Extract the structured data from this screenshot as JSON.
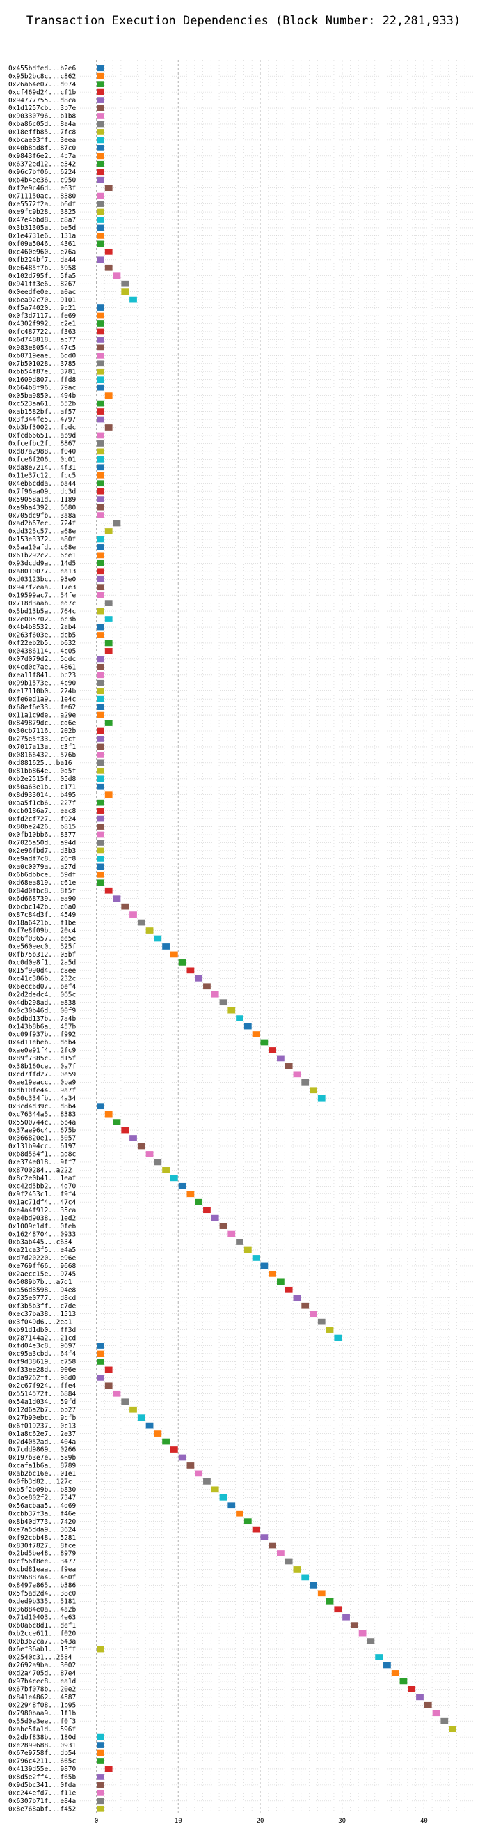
{
  "chart_data": {
    "type": "gantt",
    "title": "Transaction Execution Dependencies (Block Number: 22,281,933)",
    "xlabel": "",
    "ylabel": "",
    "xlim": [
      -2,
      46
    ],
    "x_ticks": [
      0,
      10,
      20,
      30,
      40
    ],
    "grid": true,
    "legend": "none",
    "palette": [
      "#1f77b4",
      "#ff7f0e",
      "#2ca02c",
      "#d62728",
      "#9467bd",
      "#8c564b",
      "#e377c2",
      "#7f7f7f",
      "#bcbd22",
      "#17becf"
    ],
    "transactions": [
      {
        "label": "0x455bdfed...b2e6",
        "start": 0
      },
      {
        "label": "0x95b2bc8c...c862",
        "start": 0
      },
      {
        "label": "0x26a64e07...d074",
        "start": 0
      },
      {
        "label": "0xcf469d24...cf1b",
        "start": 0
      },
      {
        "label": "0x94777755...d8ca",
        "start": 0
      },
      {
        "label": "0x1d1257cb...3b7e",
        "start": 0
      },
      {
        "label": "0x90330796...b1b8",
        "start": 0
      },
      {
        "label": "0xba86c05d...8a4a",
        "start": 0
      },
      {
        "label": "0x18effb85...7fc8",
        "start": 0
      },
      {
        "label": "0xbcae03ff...3eea",
        "start": 0
      },
      {
        "label": "0x40b8ad8f...87c0",
        "start": 0
      },
      {
        "label": "0x9843f6e2...4c7a",
        "start": 0
      },
      {
        "label": "0x6372ed12...e342",
        "start": 0
      },
      {
        "label": "0x96c7bf06...6224",
        "start": 0
      },
      {
        "label": "0xb4b4ee36...c950",
        "start": 0
      },
      {
        "label": "0xf2e9c46d...e63f",
        "start": 1
      },
      {
        "label": "0x711150ac...8380",
        "start": 0
      },
      {
        "label": "0xe5572f2a...b6df",
        "start": 0
      },
      {
        "label": "0xe9fc9b28...3825",
        "start": 0
      },
      {
        "label": "0x47e4bbd8...c8a7",
        "start": 0
      },
      {
        "label": "0x3b31305a...be5d",
        "start": 0
      },
      {
        "label": "0x1e4731e6...131a",
        "start": 0
      },
      {
        "label": "0xf09a5046...4361",
        "start": 0
      },
      {
        "label": "0xc460e960...e76a",
        "start": 1
      },
      {
        "label": "0xfb224bf7...da44",
        "start": 0
      },
      {
        "label": "0xe6485f7b...5958",
        "start": 1
      },
      {
        "label": "0x102d795f...5fa5",
        "start": 2
      },
      {
        "label": "0x941ff3e6...8267",
        "start": 3
      },
      {
        "label": "0x0eedfe0e...a0ac",
        "start": 3
      },
      {
        "label": "0xbea92c70...9101",
        "start": 4
      },
      {
        "label": "0xf5a74020...9c21",
        "start": 0
      },
      {
        "label": "0x0f3d7117...fe69",
        "start": 0
      },
      {
        "label": "0x4302f992...c2e1",
        "start": 0
      },
      {
        "label": "0xfc487722...f363",
        "start": 0
      },
      {
        "label": "0x6d748818...ac77",
        "start": 0
      },
      {
        "label": "0x983e8054...47c5",
        "start": 0
      },
      {
        "label": "0xb0719eae...6dd0",
        "start": 0
      },
      {
        "label": "0x7b501028...3785",
        "start": 0
      },
      {
        "label": "0xbb54f87e...3781",
        "start": 0
      },
      {
        "label": "0x1609d807...ffd8",
        "start": 0
      },
      {
        "label": "0x664b8f96...79ac",
        "start": 0
      },
      {
        "label": "0x05ba9850...494b",
        "start": 1
      },
      {
        "label": "0xc523aa61...552b",
        "start": 0
      },
      {
        "label": "0xab1582bf...af57",
        "start": 0
      },
      {
        "label": "0x3f344fe5...4797",
        "start": 0
      },
      {
        "label": "0xb3bf3002...fbdc",
        "start": 1
      },
      {
        "label": "0xfcd66651...ab9d",
        "start": 0
      },
      {
        "label": "0xfcefbc2f...8867",
        "start": 0
      },
      {
        "label": "0xd87a2988...f040",
        "start": 0
      },
      {
        "label": "0xfce6f206...0c01",
        "start": 0
      },
      {
        "label": "0xda8e7214...4f31",
        "start": 0
      },
      {
        "label": "0x11e37c12...fcc5",
        "start": 0
      },
      {
        "label": "0x4eb6cdda...ba44",
        "start": 0
      },
      {
        "label": "0x7f96aa09...dc3d",
        "start": 0
      },
      {
        "label": "0x59058a1d...1189",
        "start": 0
      },
      {
        "label": "0xa9ba4392...6680",
        "start": 0
      },
      {
        "label": "0x705dc9fb...3a8a",
        "start": 0
      },
      {
        "label": "0xad2b67ec...724f",
        "start": 2
      },
      {
        "label": "0xdd325c57...a68e",
        "start": 1
      },
      {
        "label": "0x153e3372...a80f",
        "start": 0
      },
      {
        "label": "0x5aa10afd...c68e",
        "start": 0
      },
      {
        "label": "0x61b292c2...6ce1",
        "start": 0
      },
      {
        "label": "0x93dcdd9a...14d5",
        "start": 0
      },
      {
        "label": "0xa8010077...ea13",
        "start": 0
      },
      {
        "label": "0xd03123bc...93e0",
        "start": 0
      },
      {
        "label": "0x947f2eaa...17e3",
        "start": 0
      },
      {
        "label": "0x19599ac7...54fe",
        "start": 0
      },
      {
        "label": "0x718d3aab...ed7c",
        "start": 1
      },
      {
        "label": "0x5bd13b5a...764c",
        "start": 0
      },
      {
        "label": "0x2e005702...bc3b",
        "start": 1
      },
      {
        "label": "0x4b4b8532...2ab4",
        "start": 0
      },
      {
        "label": "0x263f603e...dcb5",
        "start": 0
      },
      {
        "label": "0xf22eb2b5...b632",
        "start": 1
      },
      {
        "label": "0x04386114...4c05",
        "start": 1
      },
      {
        "label": "0x07d079d2...5ddc",
        "start": 0
      },
      {
        "label": "0x4cd0c7ae...4861",
        "start": 0
      },
      {
        "label": "0xea11f841...bc23",
        "start": 0
      },
      {
        "label": "0x99b1573e...4c90",
        "start": 0
      },
      {
        "label": "0xe17110b0...224b",
        "start": 0
      },
      {
        "label": "0xfe6ed1a9...1e4c",
        "start": 0
      },
      {
        "label": "0x68ef6e33...fe62",
        "start": 0
      },
      {
        "label": "0x11a1c9de...a29e",
        "start": 0
      },
      {
        "label": "0x849879dc...cd6e",
        "start": 1
      },
      {
        "label": "0x30cb7116...202b",
        "start": 0
      },
      {
        "label": "0x275e5f33...c9cf",
        "start": 0
      },
      {
        "label": "0x7017a13a...c3f1",
        "start": 0
      },
      {
        "label": "0x08166432...576b",
        "start": 0
      },
      {
        "label": "0xd881625...ba16",
        "start": 0
      },
      {
        "label": "0x81bb864e...0d5f",
        "start": 0
      },
      {
        "label": "0xb2e2515f...05d8",
        "start": 0
      },
      {
        "label": "0x50a63e1b...c171",
        "start": 0
      },
      {
        "label": "0x8d933014...b495",
        "start": 1
      },
      {
        "label": "0xaa5f1cb6...227f",
        "start": 0
      },
      {
        "label": "0xcb0186a7...eac8",
        "start": 0
      },
      {
        "label": "0xfd2cf727...f924",
        "start": 0
      },
      {
        "label": "0x80be2426...b815",
        "start": 0
      },
      {
        "label": "0x0fb10bb6...8377",
        "start": 0
      },
      {
        "label": "0x7025a50d...a94d",
        "start": 0
      },
      {
        "label": "0x2e96fbd7...d3b3",
        "start": 0
      },
      {
        "label": "0xe9adf7c8...26f8",
        "start": 0
      },
      {
        "label": "0xa0c0079a...a27d",
        "start": 0
      },
      {
        "label": "0x6b6dbbce...59df",
        "start": 0
      },
      {
        "label": "0xd68ea819...c61e",
        "start": 0
      },
      {
        "label": "0x84d0fbc8...8f5f",
        "start": 1
      },
      {
        "label": "0x6d668739...ea90",
        "start": 2
      },
      {
        "label": "0xbcbc142b...c6a0",
        "start": 3
      },
      {
        "label": "0x87c84d3f...4549",
        "start": 4
      },
      {
        "label": "0x18a6421b...f1be",
        "start": 5
      },
      {
        "label": "0xf7e8f09b...20c4",
        "start": 6
      },
      {
        "label": "0xe6f03657...ee5e",
        "start": 7
      },
      {
        "label": "0xe560eec0...525f",
        "start": 8
      },
      {
        "label": "0xfb75b312...05bf",
        "start": 9
      },
      {
        "label": "0xc0d0e8f1...2a5d",
        "start": 10
      },
      {
        "label": "0x15f990d4...c8ee",
        "start": 11
      },
      {
        "label": "0xc41c386b...232c",
        "start": 12
      },
      {
        "label": "0x6ecc6d07...bef4",
        "start": 13
      },
      {
        "label": "0x2d2dedc4...065c",
        "start": 14
      },
      {
        "label": "0x4db298ad...e838",
        "start": 15
      },
      {
        "label": "0x0c30b46d...00f9",
        "start": 16
      },
      {
        "label": "0x6dbd137b...7a4b",
        "start": 17
      },
      {
        "label": "0x143b8b6a...457b",
        "start": 18
      },
      {
        "label": "0xc09f937b...f992",
        "start": 19
      },
      {
        "label": "0x4d11ebeb...ddb4",
        "start": 20
      },
      {
        "label": "0xae0e91f4...2fc9",
        "start": 21
      },
      {
        "label": "0x89f7385c...d15f",
        "start": 22
      },
      {
        "label": "0x38b160ce...0a7f",
        "start": 23
      },
      {
        "label": "0xcd7ffd27...0e59",
        "start": 24
      },
      {
        "label": "0xae19eacc...0ba9",
        "start": 25
      },
      {
        "label": "0xdb10fe44...9a7f",
        "start": 26
      },
      {
        "label": "0x60c334fb...4a34",
        "start": 27
      },
      {
        "label": "0x3cd4d39c...d8b4",
        "start": 0
      },
      {
        "label": "0xc76344a5...8383",
        "start": 1
      },
      {
        "label": "0x5500744c...6b4a",
        "start": 2
      },
      {
        "label": "0x37ae96c4...675b",
        "start": 3
      },
      {
        "label": "0x366820e1...5057",
        "start": 4
      },
      {
        "label": "0x131b94cc...6197",
        "start": 5
      },
      {
        "label": "0xb8d564f1...ad8c",
        "start": 6
      },
      {
        "label": "0xe374e018...9ff7",
        "start": 7
      },
      {
        "label": "0x8700284...a222",
        "start": 8
      },
      {
        "label": "0x8c2e0b41...1eaf",
        "start": 9
      },
      {
        "label": "0xc42d5bb2...4d70",
        "start": 10
      },
      {
        "label": "0x9f2453c1...f9f4",
        "start": 11
      },
      {
        "label": "0x1ac71df4...47c4",
        "start": 12
      },
      {
        "label": "0xe4a4f912...35ca",
        "start": 13
      },
      {
        "label": "0xe4bd9038...1ed2",
        "start": 14
      },
      {
        "label": "0x1009c1df...0feb",
        "start": 15
      },
      {
        "label": "0x16248704...0933",
        "start": 16
      },
      {
        "label": "0xb3ab445...c634",
        "start": 17
      },
      {
        "label": "0xa21ca3f5...e4a5",
        "start": 18
      },
      {
        "label": "0xd7d20220...e96e",
        "start": 19
      },
      {
        "label": "0xe769ff66...9668",
        "start": 20
      },
      {
        "label": "0x2aecc15e...9745",
        "start": 21
      },
      {
        "label": "0x5089b7b...a7d1",
        "start": 22
      },
      {
        "label": "0xa56d8598...94e8",
        "start": 23
      },
      {
        "label": "0x735e0777...d8cd",
        "start": 24
      },
      {
        "label": "0xf3b5b3ff...c7de",
        "start": 25
      },
      {
        "label": "0xec37ba38...1513",
        "start": 26
      },
      {
        "label": "0x3f049d6...2ea1",
        "start": 27
      },
      {
        "label": "0xb91d1db0...ff3d",
        "start": 28
      },
      {
        "label": "0x787144a2...21cd",
        "start": 29
      },
      {
        "label": "0xfd04e3c8...9697",
        "start": 0
      },
      {
        "label": "0xc95a3cbd...64f4",
        "start": 0
      },
      {
        "label": "0xf9d38619...c758",
        "start": 0
      },
      {
        "label": "0xf33ee28d...906e",
        "start": 1
      },
      {
        "label": "0xda9262ff...98d0",
        "start": 0
      },
      {
        "label": "0x2c67f924...ffe4",
        "start": 1
      },
      {
        "label": "0x5514572f...6884",
        "start": 2
      },
      {
        "label": "0x54a1d034...59fd",
        "start": 3
      },
      {
        "label": "0x12d6a2b7...bb27",
        "start": 4
      },
      {
        "label": "0x27b90ebc...9cfb",
        "start": 5
      },
      {
        "label": "0x6f019237...0c13",
        "start": 6
      },
      {
        "label": "0x1a8c62e7...2e37",
        "start": 7
      },
      {
        "label": "0x2d4052ad...404a",
        "start": 8
      },
      {
        "label": "0x7cdd9869...0266",
        "start": 9
      },
      {
        "label": "0x197b3e7e...589b",
        "start": 10
      },
      {
        "label": "0xcafa1b6a...8789",
        "start": 11
      },
      {
        "label": "0xab2bc16e...01e1",
        "start": 12
      },
      {
        "label": "0x0fb3d82...127c",
        "start": 13
      },
      {
        "label": "0xb5f2b09b...b830",
        "start": 14
      },
      {
        "label": "0x3ce802f2...7347",
        "start": 15
      },
      {
        "label": "0x56acbaa5...4d69",
        "start": 16
      },
      {
        "label": "0xcbb37f3a...f46e",
        "start": 17
      },
      {
        "label": "0x8b40d773...7420",
        "start": 18
      },
      {
        "label": "0xe7a5dda9...3624",
        "start": 19
      },
      {
        "label": "0xf92cbb48...5281",
        "start": 20
      },
      {
        "label": "0x830f7827...8fce",
        "start": 21
      },
      {
        "label": "0x2bd5be48...8979",
        "start": 22
      },
      {
        "label": "0xcf56f8ee...3477",
        "start": 23
      },
      {
        "label": "0xcbd81eaa...f9ea",
        "start": 24
      },
      {
        "label": "0x896887a4...460f",
        "start": 25
      },
      {
        "label": "0x8497e865...b386",
        "start": 26
      },
      {
        "label": "0x5f5ad2d4...38c0",
        "start": 27
      },
      {
        "label": "0xded9b335...5181",
        "start": 28
      },
      {
        "label": "0x36884e0a...4a2b",
        "start": 29
      },
      {
        "label": "0x71d10403...4e63",
        "start": 30
      },
      {
        "label": "0xb0a6c8d1...def1",
        "start": 31
      },
      {
        "label": "0xb2cce611...f020",
        "start": 32
      },
      {
        "label": "0x0b362ca7...643a",
        "start": 33
      },
      {
        "label": "0x6ef36ab1...13ff",
        "start": 0
      },
      {
        "label": "0x2540c31...2584",
        "start": 34
      },
      {
        "label": "0x2692a9ba...3002",
        "start": 35
      },
      {
        "label": "0xd2a4705d...87e4",
        "start": 36
      },
      {
        "label": "0x97b4cec8...ea1d",
        "start": 37
      },
      {
        "label": "0x67bf078b...20e2",
        "start": 38
      },
      {
        "label": "0x841e4862...4587",
        "start": 39
      },
      {
        "label": "0x22948f08...1b95",
        "start": 40
      },
      {
        "label": "0x7980baa9...1f1b",
        "start": 41
      },
      {
        "label": "0x55d0e3ee...f0f3",
        "start": 42
      },
      {
        "label": "0xabc5fa1d...596f",
        "start": 43
      },
      {
        "label": "0x2dbf838b...180d",
        "start": 0
      },
      {
        "label": "0xe2899688...0931",
        "start": 0
      },
      {
        "label": "0x67e9758f...db54",
        "start": 0
      },
      {
        "label": "0x796c4211...665c",
        "start": 0
      },
      {
        "label": "0x4139d55e...9870",
        "start": 1
      },
      {
        "label": "0x8d5e2ff4...f65b",
        "start": 0
      },
      {
        "label": "0x9d5bc341...0fda",
        "start": 0
      },
      {
        "label": "0xc244efd7...f11e",
        "start": 0
      },
      {
        "label": "0x6307b71f...e84a",
        "start": 0
      },
      {
        "label": "0x8e768abf...f452",
        "start": 0
      }
    ]
  }
}
